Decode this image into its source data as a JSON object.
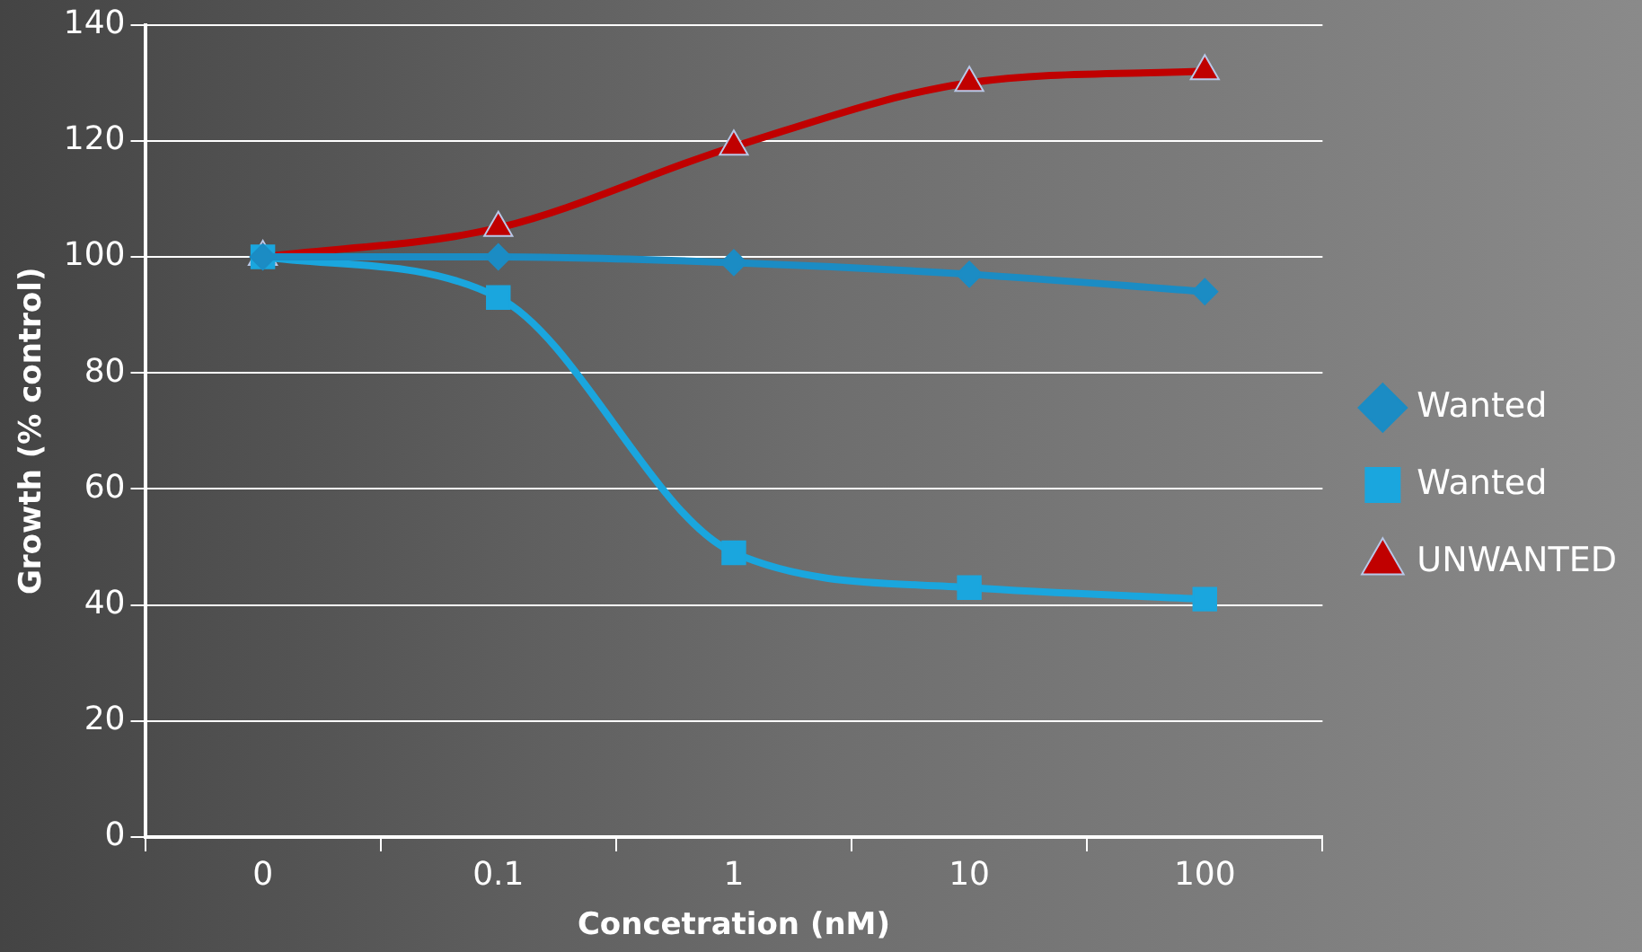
{
  "chart_data": {
    "type": "line",
    "xlabel": "Concetration (nM)",
    "ylabel": "Growth (% control)",
    "categories": [
      "0",
      "0.1",
      "1",
      "10",
      "100"
    ],
    "series": [
      {
        "name": "Wanted",
        "color": "#1b8cc4",
        "marker": "diamond",
        "values": [
          100,
          100,
          99,
          97,
          94
        ]
      },
      {
        "name": "Wanted",
        "color": "#1aa6de",
        "marker": "square",
        "values": [
          100,
          93,
          49,
          43,
          41
        ]
      },
      {
        "name": "UNWANTED",
        "color": "#c00000",
        "marker": "triangle",
        "values": [
          100,
          105,
          119,
          130,
          132
        ]
      }
    ],
    "ylim": [
      0,
      140
    ],
    "yticks": [
      0,
      20,
      40,
      60,
      80,
      100,
      120,
      140
    ],
    "grid": "y",
    "legend": "right"
  }
}
